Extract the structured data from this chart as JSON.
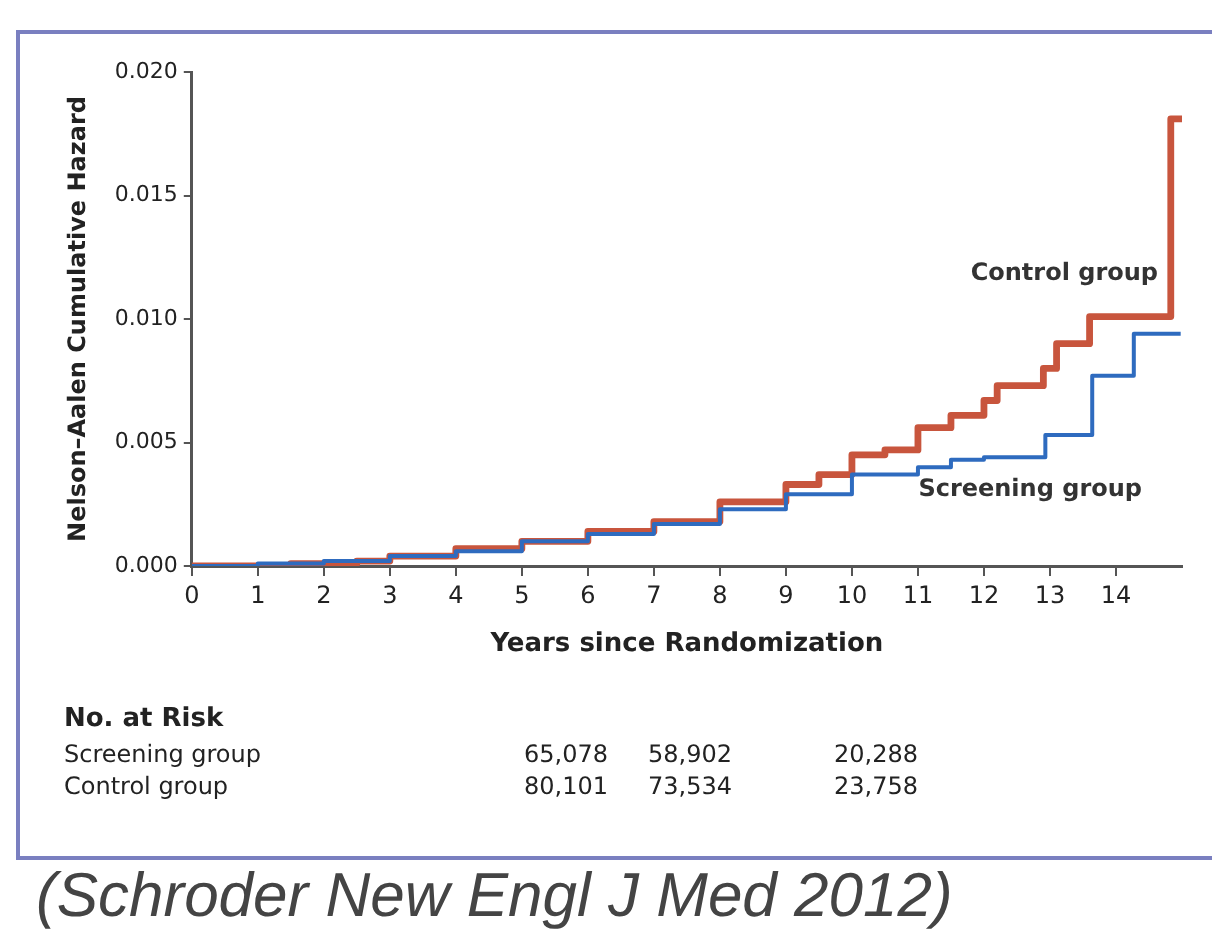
{
  "chart_data": {
    "type": "step",
    "xlabel": "Years since Randomization",
    "ylabel": "Nelson–Aalen Cumulative Hazard",
    "xlim": [
      0,
      15
    ],
    "xticks": [
      0,
      1,
      2,
      3,
      4,
      5,
      6,
      7,
      8,
      9,
      10,
      11,
      12,
      13,
      14
    ],
    "ylim": [
      0,
      0.02
    ],
    "yticks": [
      {
        "value": 0,
        "label": "0.000"
      },
      {
        "value": 0.005,
        "label": "0.005"
      },
      {
        "value": 0.01,
        "label": "0.010"
      },
      {
        "value": 0.015,
        "label": "0.015"
      },
      {
        "value": 0.02,
        "label": "0.020"
      }
    ],
    "grid": false,
    "legend": false,
    "marker": "none",
    "series": [
      {
        "name": "Control group",
        "color": "#c8553d",
        "x": [
          0,
          1.5,
          2.5,
          3,
          4,
          5,
          6,
          7,
          8,
          9,
          9.5,
          10,
          10.5,
          11,
          11.5,
          12,
          12.2,
          12.9,
          13.1,
          13.6,
          14.83,
          15
        ],
        "values": [
          0,
          0.0001,
          0.0002,
          0.0004,
          0.0007,
          0.001,
          0.0014,
          0.0018,
          0.0026,
          0.0033,
          0.0037,
          0.0045,
          0.0047,
          0.0056,
          0.0061,
          0.0067,
          0.0073,
          0.008,
          0.009,
          0.0101,
          0.0181,
          0.0181
        ]
      },
      {
        "name": "Screening group",
        "color": "#2e6bbf",
        "x": [
          0,
          1,
          2,
          3,
          4,
          5,
          6,
          7,
          8,
          9,
          10,
          11,
          11.5,
          12,
          12.93,
          13.64,
          14.27,
          14.98
        ],
        "values": [
          0,
          0.0001,
          0.0002,
          0.0004,
          0.0006,
          0.001,
          0.0013,
          0.0017,
          0.0023,
          0.0029,
          0.0037,
          0.004,
          0.0043,
          0.0044,
          0.0053,
          0.0077,
          0.0094,
          0.0094
        ]
      }
    ],
    "annotations": [
      "No. at Risk",
      "Screening group\t65,078\t58,902\t\t20,288",
      "Control group\t80,101\t73,534\t\t23,758",
      "(Schroder New Engl J Med 2012)"
    ]
  }
}
